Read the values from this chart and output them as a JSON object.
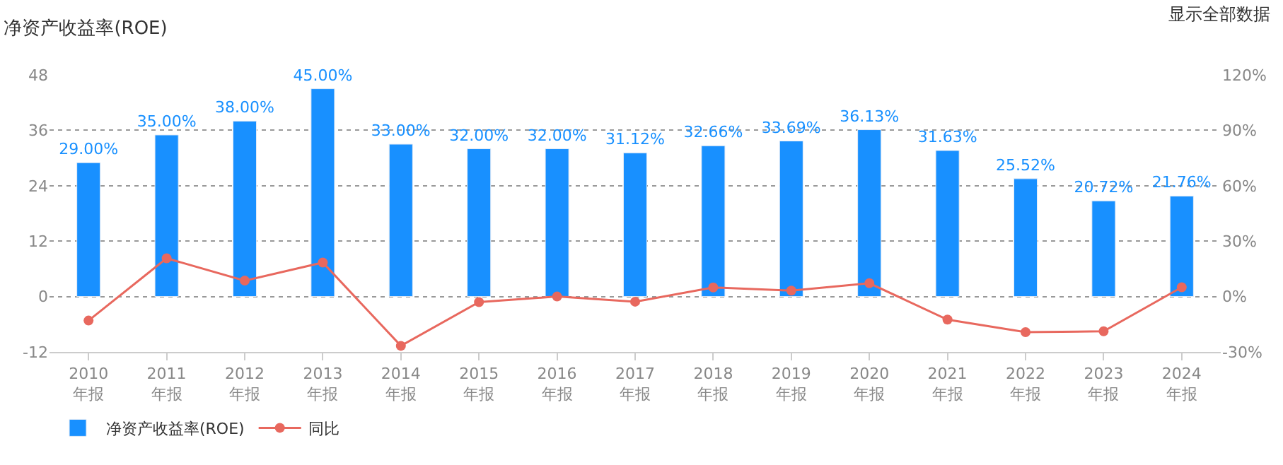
{
  "chart_data": {
    "type": "bar",
    "title": "净资产收益率(ROE)",
    "annotations": [
      "显示全部数据"
    ],
    "categories": [
      "2010\n年报",
      "2011\n年报",
      "2012\n年报",
      "2013\n年报",
      "2014\n年报",
      "2015\n年报",
      "2016\n年报",
      "2017\n年报",
      "2018\n年报",
      "2019\n年报",
      "2020\n年报",
      "2021\n年报",
      "2022\n年报",
      "2023\n年报",
      "2024\n年报"
    ],
    "series": [
      {
        "name": "净资产收益率(ROE)",
        "color": "#1890ff",
        "values": [
          29.0,
          35.0,
          38.0,
          45.0,
          33.0,
          32.0,
          32.0,
          31.12,
          32.66,
          33.69,
          36.13,
          31.63,
          25.52,
          20.72,
          21.76
        ],
        "value_labels": [
          "29.00%",
          "35.00%",
          "38.00%",
          "45.00%",
          "33.00%",
          "32.00%",
          "32.00%",
          "31.12%",
          "32.66%",
          "33.69%",
          "36.13%",
          "31.63%",
          "25.52%",
          "20.72%",
          "21.76%"
        ]
      },
      {
        "name": "同比",
        "type": "line",
        "axis": "y2",
        "color": "#e8685e",
        "marker": "circle",
        "values": [
          -13.0,
          20.7,
          8.6,
          18.4,
          -26.7,
          -3.0,
          0.0,
          -2.8,
          4.9,
          3.2,
          7.2,
          -12.5,
          -19.3,
          -18.8,
          5.0
        ]
      }
    ],
    "ylim": [
      -12,
      48
    ],
    "yticks": [
      -12,
      0,
      12,
      24,
      36,
      48
    ],
    "y2lim": [
      -30,
      120
    ],
    "y2ticks": [
      {
        "value": -30,
        "label": "-30%"
      },
      {
        "value": 0,
        "label": "0%"
      },
      {
        "value": 30,
        "label": "30%"
      },
      {
        "value": 60,
        "label": "60%"
      },
      {
        "value": 90,
        "label": "90%"
      },
      {
        "value": 120,
        "label": "120%"
      }
    ],
    "grid": "y",
    "legend": "bottom left"
  }
}
